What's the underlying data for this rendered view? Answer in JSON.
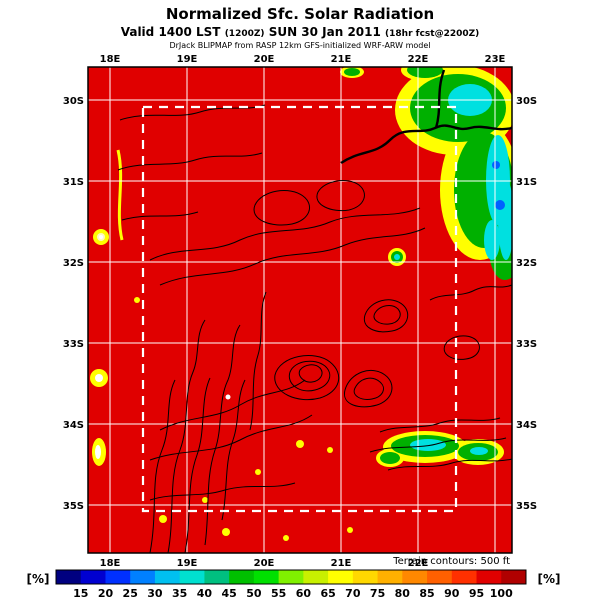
{
  "header": {
    "title": "Normalized Sfc. Solar Radiation",
    "valid_prefix": "Valid 1400 LST",
    "valid_utc": "(1200Z)",
    "valid_date": "SUN 30 Jan 2011",
    "fcst_info": "(18hr fcst@2200Z)",
    "model_line": "DrJack BLIPMAP from RASP 12km GFS-initialized WRF-ARW model"
  },
  "map": {
    "fill_color": "#e00000",
    "lon_labels": [
      "18E",
      "19E",
      "20E",
      "21E",
      "22E",
      "23E"
    ],
    "bottom_lon_labels": [
      "18E",
      "19E",
      "20E",
      "21E",
      "22E"
    ],
    "lat_labels_left": [
      "30S",
      "31S",
      "32S",
      "33S",
      "34S",
      "35S"
    ],
    "lat_labels_right": [
      "30S",
      "31S",
      "32S",
      "33S",
      "34S",
      "35S"
    ],
    "terrain_note": "Terrain contours: 500 ft"
  },
  "colorbar": {
    "unit_left": "[%]",
    "unit_right": "[%]",
    "tick_values": [
      15,
      20,
      25,
      30,
      35,
      40,
      45,
      50,
      55,
      60,
      65,
      70,
      75,
      80,
      85,
      90,
      95,
      100
    ],
    "segment_colors": [
      "#000080",
      "#0000d0",
      "#0030ff",
      "#0080ff",
      "#00c0f0",
      "#00e0d0",
      "#00c080",
      "#00c000",
      "#00e000",
      "#80f000",
      "#c8f000",
      "#ffff00",
      "#ffd800",
      "#ffb000",
      "#ff8800",
      "#ff6000",
      "#ff3000",
      "#e00000",
      "#b00000"
    ]
  }
}
